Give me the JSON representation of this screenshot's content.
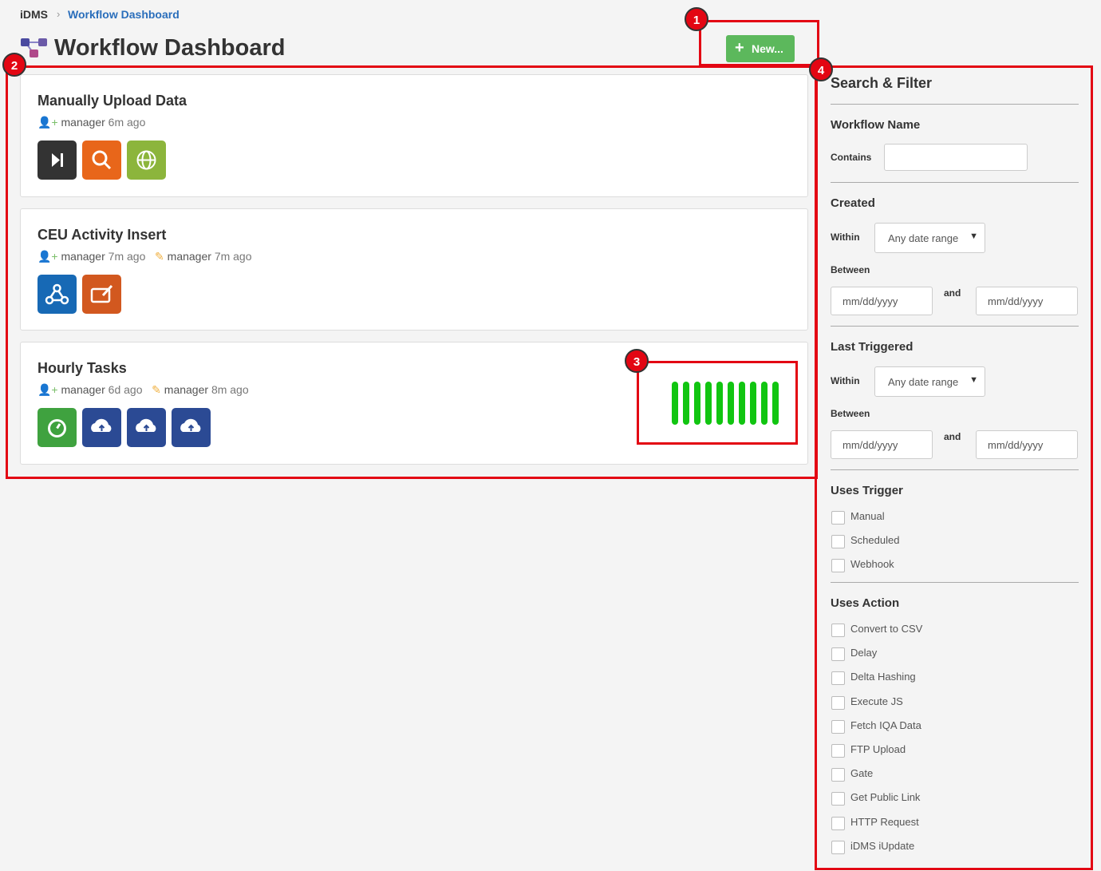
{
  "breadcrumb": [
    "iDMS",
    "Workflow Dashboard"
  ],
  "header": {
    "title": "Workflow Dashboard",
    "new_button": "New..."
  },
  "annotations": [
    "1",
    "2",
    "3",
    "4"
  ],
  "workflows": [
    {
      "name": "Manually Upload Data",
      "created": {
        "user": "manager",
        "time": "6m ago"
      }
    },
    {
      "name": "CEU Activity Insert",
      "created": {
        "user": "manager",
        "time": "7m ago"
      },
      "modified": {
        "user": "manager",
        "time": "7m ago"
      }
    },
    {
      "name": "Hourly Tasks",
      "created": {
        "user": "manager",
        "time": "6d ago"
      },
      "modified": {
        "user": "manager",
        "time": "8m ago"
      }
    }
  ],
  "filter": {
    "title": "Search & Filter",
    "workflow_name": {
      "heading": "Workflow Name",
      "label": "Contains"
    },
    "created": {
      "heading": "Created",
      "within": "Within",
      "select": "Any date range",
      "between": "Between",
      "from": "mm/dd/yyyy",
      "and": "and",
      "to": "mm/dd/yyyy"
    },
    "last_triggered": {
      "heading": "Last Triggered",
      "within": "Within",
      "select": "Any date range",
      "between": "Between",
      "from": "mm/dd/yyyy",
      "and": "and",
      "to": "mm/dd/yyyy"
    },
    "uses_trigger": {
      "heading": "Uses Trigger",
      "options": [
        "Manual",
        "Scheduled",
        "Webhook"
      ]
    },
    "uses_action": {
      "heading": "Uses Action",
      "options": [
        "Convert to CSV",
        "Delay",
        "Delta Hashing",
        "Execute JS",
        "Fetch IQA Data",
        "FTP Upload",
        "Gate",
        "Get Public Link",
        "HTTP Request",
        "iDMS iUpdate"
      ]
    }
  }
}
